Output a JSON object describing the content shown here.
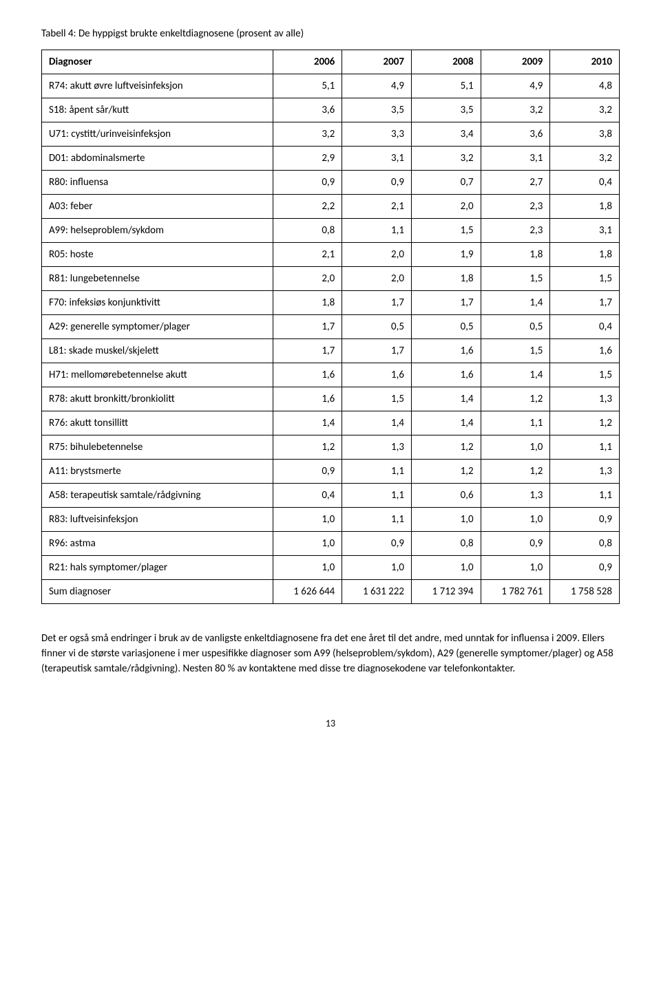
{
  "caption": "Tabell 4: De hyppigst brukte enkeltdiagnosene (prosent av alle)",
  "table": {
    "columns": [
      "Diagnoser",
      "2006",
      "2007",
      "2008",
      "2009",
      "2010"
    ],
    "rows": [
      [
        "R74: akutt øvre luftveisinfeksjon",
        "5,1",
        "4,9",
        "5,1",
        "4,9",
        "4,8"
      ],
      [
        "S18: åpent sår/kutt",
        "3,6",
        "3,5",
        "3,5",
        "3,2",
        "3,2"
      ],
      [
        "U71: cystitt/urinveisinfeksjon",
        "3,2",
        "3,3",
        "3,4",
        "3,6",
        "3,8"
      ],
      [
        "D01: abdominalsmerte",
        "2,9",
        "3,1",
        "3,2",
        "3,1",
        "3,2"
      ],
      [
        "R80: influensa",
        "0,9",
        "0,9",
        "0,7",
        "2,7",
        "0,4"
      ],
      [
        "A03: feber",
        "2,2",
        "2,1",
        "2,0",
        "2,3",
        "1,8"
      ],
      [
        "A99: helseproblem/sykdom",
        "0,8",
        "1,1",
        "1,5",
        "2,3",
        "3,1"
      ],
      [
        "R05: hoste",
        "2,1",
        "2,0",
        "1,9",
        "1,8",
        "1,8"
      ],
      [
        "R81: lungebetennelse",
        "2,0",
        "2,0",
        "1,8",
        "1,5",
        "1,5"
      ],
      [
        "F70: infeksiøs konjunktivitt",
        "1,8",
        "1,7",
        "1,7",
        "1,4",
        "1,7"
      ],
      [
        "A29: generelle symptomer/plager",
        "1,7",
        "0,5",
        "0,5",
        "0,5",
        "0,4"
      ],
      [
        "L81: skade muskel/skjelett",
        "1,7",
        "1,7",
        "1,6",
        "1,5",
        "1,6"
      ],
      [
        "H71: mellomørebetennelse akutt",
        "1,6",
        "1,6",
        "1,6",
        "1,4",
        "1,5"
      ],
      [
        "R78: akutt bronkitt/bronkiolitt",
        "1,6",
        "1,5",
        "1,4",
        "1,2",
        "1,3"
      ],
      [
        "R76: akutt tonsillitt",
        "1,4",
        "1,4",
        "1,4",
        "1,1",
        "1,2"
      ],
      [
        "R75: bihulebetennelse",
        "1,2",
        "1,3",
        "1,2",
        "1,0",
        "1,1"
      ],
      [
        "A11: brystsmerte",
        "0,9",
        "1,1",
        "1,2",
        "1,2",
        "1,3"
      ],
      [
        "A58: terapeutisk samtale/rådgivning",
        "0,4",
        "1,1",
        "0,6",
        "1,3",
        "1,1"
      ],
      [
        "R83: luftveisinfeksjon",
        "1,0",
        "1,1",
        "1,0",
        "1,0",
        "0,9"
      ],
      [
        "R96: astma",
        "1,0",
        "0,9",
        "0,8",
        "0,9",
        "0,8"
      ],
      [
        "R21: hals symptomer/plager",
        "1,0",
        "1,0",
        "1,0",
        "1,0",
        "0,9"
      ],
      [
        "Sum diagnoser",
        "1 626 644",
        "1 631 222",
        "1 712 394",
        "1 782 761",
        "1 758 528"
      ]
    ],
    "col_widths_pct": [
      40,
      12,
      12,
      12,
      12,
      12
    ],
    "border_color": "#000000",
    "header_fontweight": "bold",
    "cell_fontsize": 15,
    "num_align": "right",
    "label_align": "left"
  },
  "body_text": "Det er også små endringer i bruk av de vanligste enkeltdiagnosene fra det ene året til det andre, med unntak for influensa i 2009. Ellers finner vi de største variasjonene i mer uspesifikke diagnoser som A99 (helseproblem/sykdom), A29 (generelle symptomer/plager) og A58 (terapeutisk samtale/rådgivning). Nesten 80 % av kontaktene med disse tre diagnosekodene var telefonkontakter.",
  "page_number": "13",
  "style": {
    "background_color": "#ffffff",
    "text_color": "#000000",
    "font_family": "Calibri, Arial, sans-serif",
    "body_fontsize": 15,
    "caption_fontsize": 15,
    "pagenum_fontsize": 14
  }
}
